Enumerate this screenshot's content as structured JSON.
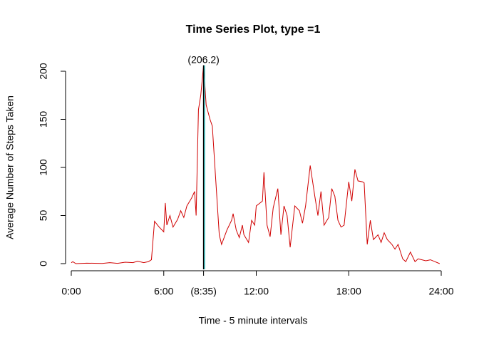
{
  "chart_data": {
    "type": "line",
    "title": "Time Series Plot, type =1",
    "x_label": "Time - 5 minute intervals",
    "y_label": "Average Number of Steps Taken",
    "xlim": [
      0,
      24
    ],
    "ylim": [
      0,
      200
    ],
    "xticks": [
      {
        "value": 0,
        "label": "0:00"
      },
      {
        "value": 6,
        "label": "6:00"
      },
      {
        "value": 8.583,
        "label": "(8:35)"
      },
      {
        "value": 12,
        "label": "12:00"
      },
      {
        "value": 18,
        "label": "18:00"
      },
      {
        "value": 24,
        "label": "24:00"
      }
    ],
    "yticks": [
      0,
      50,
      100,
      150,
      200
    ],
    "annotation": {
      "text": "(206.2)",
      "x": 8.583,
      "y": 206.2
    },
    "series": [
      {
        "color": "#d00000",
        "x": [
          0,
          0.1,
          0.3,
          1,
          2,
          2.5,
          3,
          3.5,
          4,
          4.3,
          4.7,
          5.0,
          5.2,
          5.4,
          5.7,
          6.0,
          6.1,
          6.2,
          6.4,
          6.6,
          6.9,
          7.1,
          7.3,
          7.5,
          7.8,
          8.0,
          8.1,
          8.25,
          8.4,
          8.583,
          8.75,
          9.0,
          9.15,
          9.4,
          9.6,
          9.75,
          10.1,
          10.4,
          10.5,
          10.7,
          10.9,
          11.1,
          11.2,
          11.5,
          11.7,
          11.9,
          12.0,
          12.4,
          12.5,
          12.7,
          12.9,
          13.1,
          13.4,
          13.6,
          13.8,
          14.0,
          14.2,
          14.5,
          14.8,
          15.0,
          15.2,
          15.5,
          15.8,
          16.0,
          16.2,
          16.4,
          16.7,
          16.9,
          17.1,
          17.3,
          17.5,
          17.7,
          18.0,
          18.2,
          18.4,
          18.6,
          18.9,
          19.0,
          19.2,
          19.4,
          19.6,
          19.9,
          20.1,
          20.3,
          20.5,
          20.8,
          21.0,
          21.2,
          21.5,
          21.7,
          22.0,
          22.3,
          22.5,
          23.0,
          23.3,
          23.6,
          23.9
        ],
        "values": [
          1,
          2,
          0,
          0.5,
          0.2,
          1,
          0.3,
          1.5,
          1,
          2.5,
          1,
          2,
          4,
          44,
          38,
          33,
          63,
          40,
          50,
          38,
          46,
          55,
          48,
          60,
          68,
          75,
          50,
          160,
          175,
          206.2,
          165,
          150,
          143,
          80,
          30,
          20,
          35,
          45,
          52,
          35,
          27,
          40,
          30,
          22,
          45,
          40,
          60,
          65,
          95,
          40,
          28,
          58,
          78,
          30,
          60,
          50,
          17,
          60,
          55,
          42,
          60,
          102,
          70,
          50,
          75,
          40,
          48,
          78,
          70,
          45,
          38,
          40,
          85,
          65,
          98,
          86,
          85,
          84,
          20,
          45,
          25,
          30,
          22,
          32,
          25,
          20,
          15,
          20,
          5,
          2,
          12,
          2,
          5,
          3,
          4,
          2,
          0
        ]
      }
    ]
  }
}
